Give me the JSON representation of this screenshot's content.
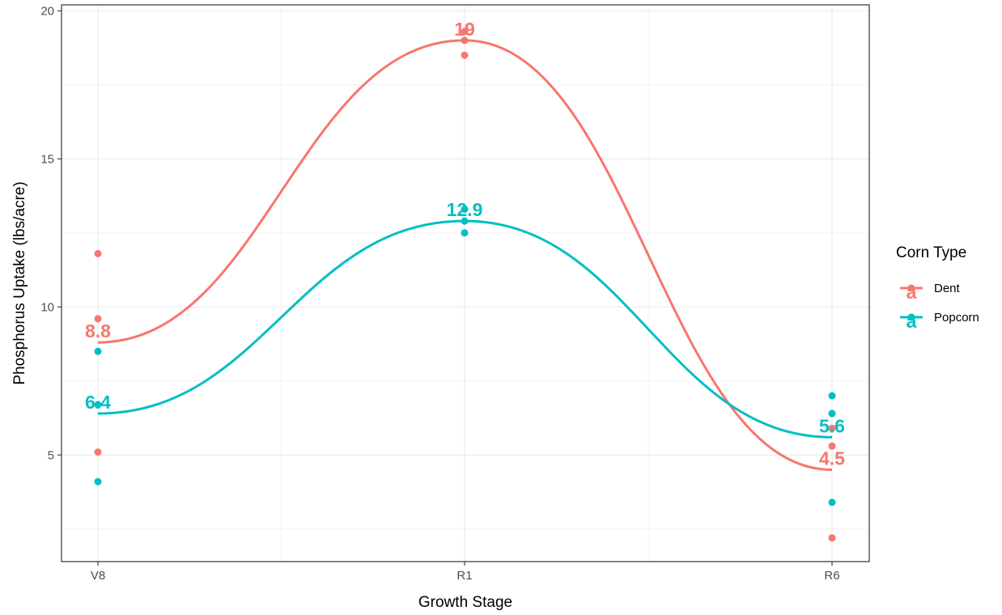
{
  "chart_data": {
    "type": "line",
    "xlabel": "Growth Stage",
    "ylabel": "Phosphorus Uptake (lbs/acre)",
    "categories": [
      "V8",
      "R1",
      "R6"
    ],
    "ylim": [
      1.4,
      20.2
    ],
    "yticks": [
      5,
      10,
      15,
      20
    ],
    "grid": true,
    "legend": {
      "title": "Corn Type",
      "position": "right"
    },
    "series": [
      {
        "name": "Dent",
        "color": "#F8766D",
        "means": [
          8.8,
          19,
          4.5
        ],
        "labels": [
          "8.8",
          "19",
          "4.5"
        ],
        "legend_glyph": "a",
        "points": [
          [
            11.8,
            9.6,
            5.1
          ],
          [
            19.3,
            19.0,
            18.5
          ],
          [
            5.9,
            5.3,
            2.2
          ]
        ]
      },
      {
        "name": "Popcorn",
        "color": "#00BFC4",
        "means": [
          6.4,
          12.9,
          5.6
        ],
        "labels": [
          "6.4",
          "12.9",
          "5.6"
        ],
        "legend_glyph": "a",
        "points": [
          [
            8.5,
            6.7,
            4.1
          ],
          [
            13.3,
            12.9,
            12.5
          ],
          [
            7.0,
            6.4,
            3.4
          ]
        ]
      }
    ]
  }
}
